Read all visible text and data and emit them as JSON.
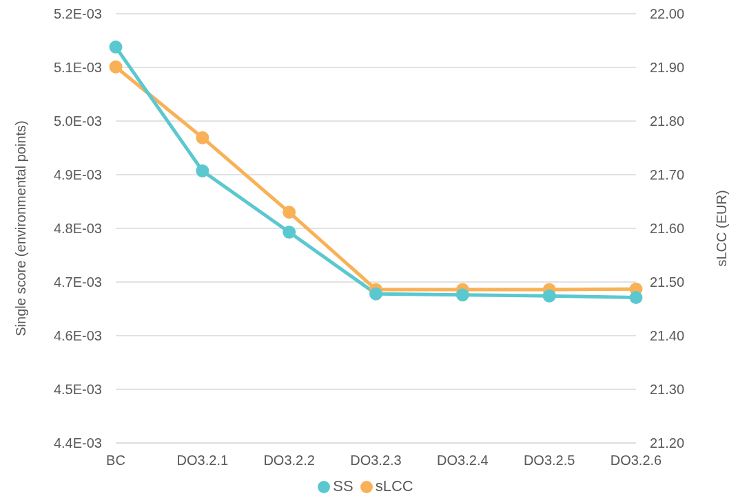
{
  "chart_data": {
    "type": "line",
    "categories": [
      "BC",
      "DO3.2.1",
      "DO3.2.2",
      "DO3.2.3",
      "DO3.2.4",
      "DO3.2.5",
      "DO3.2.6"
    ],
    "ylabel": "Single score (environmental points)",
    "y2label": "sLCC (EUR)",
    "series": [
      {
        "name": "SS",
        "color": "#5bc8d0",
        "values": [
          0.005138,
          0.004907,
          0.004793,
          0.004678,
          0.004676,
          0.004674,
          0.004671
        ]
      },
      {
        "name": "sLCC",
        "color": "#f9b157",
        "axis": "y2",
        "values": [
          21.901,
          21.769,
          21.63,
          21.486,
          21.486,
          21.486,
          21.487
        ]
      }
    ],
    "ylim": [
      0.0044,
      0.0052
    ],
    "yticks": [
      {
        "value": 0.0044,
        "label": "4.4E-03"
      },
      {
        "value": 0.0045,
        "label": "4.5E-03"
      },
      {
        "value": 0.0046,
        "label": "4.6E-03"
      },
      {
        "value": 0.0047,
        "label": "4.7E-03"
      },
      {
        "value": 0.0048,
        "label": "4.8E-03"
      },
      {
        "value": 0.0049,
        "label": "4.9E-03"
      },
      {
        "value": 0.005,
        "label": "5.0E-03"
      },
      {
        "value": 0.0051,
        "label": "5.1E-03"
      },
      {
        "value": 0.0052,
        "label": "5.2E-03"
      }
    ],
    "y2lim": [
      21.2,
      22
    ],
    "y2ticks": [
      {
        "value": 21.2,
        "label": "21.20"
      },
      {
        "value": 21.3,
        "label": "21.30"
      },
      {
        "value": 21.4,
        "label": "21.40"
      },
      {
        "value": 21.5,
        "label": "21.50"
      },
      {
        "value": 21.6,
        "label": "21.60"
      },
      {
        "value": 21.7,
        "label": "21.70"
      },
      {
        "value": 21.8,
        "label": "21.80"
      },
      {
        "value": 21.9,
        "label": "21.90"
      },
      {
        "value": 22,
        "label": "22.00"
      }
    ],
    "grid": "y",
    "legend": "bottom",
    "marker": "circle",
    "line_style": "solid"
  }
}
